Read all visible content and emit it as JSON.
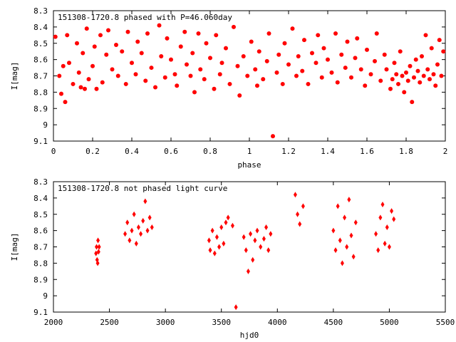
{
  "chart_data": [
    {
      "type": "scatter",
      "title": "151308-1720.8 phased with P=46.060day",
      "xlabel": "phase",
      "ylabel": "I[mag]",
      "xlim": [
        0,
        2
      ],
      "ylim": [
        9.1,
        8.3
      ],
      "y_inverted": true,
      "x_ticks": [
        "0",
        "0.2",
        "0.4",
        "0.6",
        "0.8",
        "1",
        "1.2",
        "1.4",
        "1.6",
        "1.8",
        "2"
      ],
      "y_ticks": [
        "8.3",
        "8.4",
        "8.5",
        "8.6",
        "8.7",
        "8.8",
        "8.9",
        "9",
        "9.1"
      ],
      "marker_color": "#ff0000",
      "grid": false,
      "series": [
        {
          "x": [
            0.01,
            0.03,
            0.04,
            0.05,
            0.06,
            0.07,
            0.08,
            0.1,
            0.12,
            0.13,
            0.14,
            0.15,
            0.16,
            0.17,
            0.18,
            0.2,
            0.21,
            0.22,
            0.24,
            0.25,
            0.27,
            0.28,
            0.3,
            0.32,
            0.33,
            0.35,
            0.37,
            0.38,
            0.4,
            0.42,
            0.43,
            0.45,
            0.47,
            0.48,
            0.5,
            0.52,
            0.54,
            0.55,
            0.57,
            0.58,
            0.6,
            0.62,
            0.63,
            0.65,
            0.67,
            0.68,
            0.7,
            0.71,
            0.72,
            0.74,
            0.75,
            0.77,
            0.78,
            0.8,
            0.82,
            0.83,
            0.85,
            0.86,
            0.88,
            0.9,
            0.92,
            0.94,
            0.95,
            0.97,
            0.99,
            1.01,
            1.03,
            1.04,
            1.05,
            1.07,
            1.09,
            1.1,
            1.12,
            1.14,
            1.15,
            1.17,
            1.18,
            1.2,
            1.22,
            1.24,
            1.25,
            1.27,
            1.28,
            1.3,
            1.32,
            1.34,
            1.35,
            1.37,
            1.38,
            1.4,
            1.42,
            1.44,
            1.45,
            1.47,
            1.49,
            1.5,
            1.52,
            1.54,
            1.55,
            1.57,
            1.59,
            1.6,
            1.62,
            1.64,
            1.65,
            1.67,
            1.69,
            1.7,
            1.72,
            1.73,
            1.74,
            1.75,
            1.76,
            1.77,
            1.78,
            1.79,
            1.8,
            1.81,
            1.82,
            1.83,
            1.84,
            1.85,
            1.86,
            1.87,
            1.88,
            1.89,
            1.9,
            1.91,
            1.92,
            1.93,
            1.94,
            1.95,
            1.96,
            1.97,
            1.98,
            1.99
          ],
          "y": [
            8.46,
            8.7,
            8.81,
            8.64,
            8.86,
            8.45,
            8.62,
            8.75,
            8.5,
            8.68,
            8.77,
            8.56,
            8.78,
            8.41,
            8.72,
            8.64,
            8.52,
            8.78,
            8.45,
            8.74,
            8.57,
            8.42,
            8.66,
            8.51,
            8.7,
            8.55,
            8.75,
            8.43,
            8.62,
            8.69,
            8.49,
            8.56,
            8.73,
            8.44,
            8.65,
            8.77,
            8.39,
            8.58,
            8.71,
            8.47,
            8.6,
            8.69,
            8.76,
            8.52,
            8.43,
            8.63,
            8.7,
            8.56,
            8.8,
            8.44,
            8.66,
            8.72,
            8.5,
            8.59,
            8.78,
            8.45,
            8.69,
            8.62,
            8.53,
            8.75,
            8.4,
            8.64,
            8.82,
            8.58,
            8.7,
            8.49,
            8.66,
            8.76,
            8.55,
            8.72,
            8.61,
            8.44,
            9.07,
            8.68,
            8.57,
            8.75,
            8.5,
            8.63,
            8.41,
            8.7,
            8.58,
            8.67,
            8.48,
            8.75,
            8.56,
            8.62,
            8.45,
            8.71,
            8.53,
            8.6,
            8.68,
            8.44,
            8.74,
            8.57,
            8.65,
            8.49,
            8.71,
            8.59,
            8.47,
            8.66,
            8.76,
            8.54,
            8.69,
            8.61,
            8.44,
            8.73,
            8.57,
            8.66,
            8.78,
            8.72,
            8.62,
            8.69,
            8.75,
            8.55,
            8.7,
            8.8,
            8.68,
            8.73,
            8.64,
            8.86,
            8.71,
            8.6,
            8.67,
            8.74,
            8.58,
            8.7,
            8.45,
            8.66,
            8.72,
            8.53,
            8.69,
            8.76,
            8.63,
            8.48,
            8.7,
            8.55
          ]
        }
      ]
    },
    {
      "type": "scatter",
      "title": "151308-1720.8 not phased light curve",
      "xlabel": "hjd0",
      "ylabel": "I[mag]",
      "xlim": [
        2000,
        5500
      ],
      "ylim": [
        9.1,
        8.3
      ],
      "y_inverted": true,
      "x_ticks": [
        "2000",
        "2500",
        "3000",
        "3500",
        "4000",
        "4500",
        "5000",
        "5500"
      ],
      "y_ticks": [
        "8.3",
        "8.4",
        "8.5",
        "8.6",
        "8.7",
        "8.8",
        "8.9",
        "9",
        "9.1"
      ],
      "marker_color": "#ff0000",
      "grid": false,
      "series": [
        {
          "x": [
            2380,
            2385,
            2390,
            2395,
            2398,
            2403,
            2408,
            2640,
            2660,
            2680,
            2700,
            2720,
            2740,
            2760,
            2780,
            2800,
            2820,
            2840,
            2860,
            2880,
            3390,
            3400,
            3420,
            3440,
            3460,
            3480,
            3500,
            3520,
            3540,
            3560,
            3600,
            3630,
            3700,
            3720,
            3740,
            3760,
            3780,
            3800,
            3820,
            3850,
            3880,
            3900,
            3920,
            3940,
            4160,
            4180,
            4200,
            4230,
            4500,
            4520,
            4540,
            4560,
            4580,
            4600,
            4620,
            4640,
            4660,
            4680,
            4700,
            4880,
            4900,
            4920,
            4940,
            4960,
            4980,
            5000,
            5020,
            5040
          ],
          "y": [
            8.74,
            8.7,
            8.78,
            8.8,
            8.66,
            8.73,
            8.7,
            8.62,
            8.55,
            8.66,
            8.6,
            8.5,
            8.68,
            8.58,
            8.62,
            8.54,
            8.42,
            8.6,
            8.52,
            8.58,
            8.66,
            8.72,
            8.6,
            8.74,
            8.64,
            8.7,
            8.58,
            8.68,
            8.55,
            8.52,
            8.57,
            9.07,
            8.64,
            8.72,
            8.85,
            8.62,
            8.78,
            8.66,
            8.6,
            8.7,
            8.65,
            8.58,
            8.72,
            8.62,
            8.38,
            8.5,
            8.56,
            8.45,
            8.6,
            8.72,
            8.45,
            8.66,
            8.8,
            8.52,
            8.7,
            8.41,
            8.63,
            8.76,
            8.55,
            8.62,
            8.72,
            8.52,
            8.44,
            8.68,
            8.58,
            8.7,
            8.48,
            8.53
          ]
        }
      ]
    }
  ]
}
